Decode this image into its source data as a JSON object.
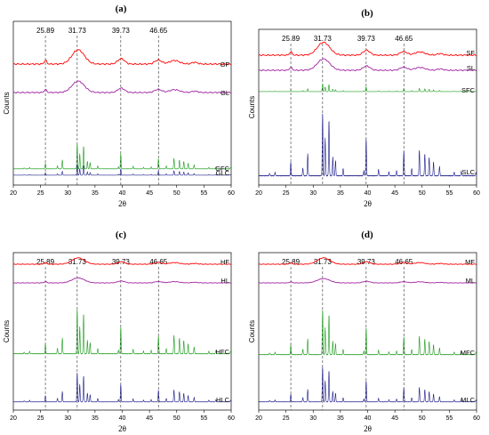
{
  "chart_data": [
    {
      "panel": "(a)",
      "type": "line",
      "xlabel": "2θ",
      "ylabel": "Counts",
      "xlim": [
        20,
        60
      ],
      "xticks": [
        20,
        25,
        30,
        35,
        40,
        45,
        50,
        55,
        60
      ],
      "reference_lines": [
        25.89,
        31.73,
        39.73,
        46.65
      ],
      "reference_labels": [
        "25.89",
        "31.73",
        "39.73",
        "46.65"
      ],
      "series": [
        {
          "name": "GF",
          "color": "#ff0000",
          "style": "amorphous",
          "amplitude": 1.0
        },
        {
          "name": "GL",
          "color": "#a020a0",
          "style": "amorphous",
          "amplitude": 0.8
        },
        {
          "name": "GFC",
          "color": "#1a9a1a",
          "style": "crystalline",
          "amplitude": 1.3
        },
        {
          "name": "GLC",
          "color": "#1a1a8a",
          "style": "crystalline",
          "amplitude": 0.55
        }
      ]
    },
    {
      "panel": "(b)",
      "type": "line",
      "xlabel": "2θ",
      "ylabel": "Counts",
      "xlim": [
        20,
        60
      ],
      "xticks": [
        20,
        25,
        30,
        35,
        40,
        45,
        50,
        55,
        60
      ],
      "reference_lines": [
        25.89,
        31.73,
        39.73,
        46.65
      ],
      "reference_labels": [
        "25.89",
        "31.73",
        "39.73",
        "46.65"
      ],
      "series": [
        {
          "name": "SF",
          "color": "#ff0000",
          "style": "amorphous",
          "amplitude": 0.9
        },
        {
          "name": "SL",
          "color": "#a020a0",
          "style": "amorphous",
          "amplitude": 0.8
        },
        {
          "name": "SFC",
          "color": "#1a9a1a",
          "style": "crystalline",
          "amplitude": 0.4
        },
        {
          "name": "SLC",
          "color": "#1a1a8a",
          "style": "crystalline",
          "amplitude": 3.2
        }
      ]
    },
    {
      "panel": "(c)",
      "type": "line",
      "xlabel": "2θ",
      "ylabel": "Counts",
      "xlim": [
        20,
        60
      ],
      "xticks": [
        20,
        25,
        30,
        35,
        40,
        45,
        50,
        55,
        60
      ],
      "reference_lines": [
        25.89,
        31.73,
        39.73,
        46.65
      ],
      "reference_labels": [
        "25.89",
        "31.73",
        "39.73",
        "46.65"
      ],
      "series": [
        {
          "name": "HF",
          "color": "#ff0000",
          "style": "amorphous",
          "amplitude": 0.45
        },
        {
          "name": "HL",
          "color": "#a020a0",
          "style": "amorphous",
          "amplitude": 0.35
        },
        {
          "name": "HFC",
          "color": "#1a9a1a",
          "style": "crystalline",
          "amplitude": 2.3
        },
        {
          "name": "HLC",
          "color": "#1a1a8a",
          "style": "crystalline",
          "amplitude": 1.5
        }
      ]
    },
    {
      "panel": "(d)",
      "type": "line",
      "xlabel": "2θ",
      "ylabel": "Counts",
      "xlim": [
        20,
        60
      ],
      "xticks": [
        20,
        25,
        30,
        35,
        40,
        45,
        50,
        55,
        60
      ],
      "reference_lines": [
        25.89,
        31.73,
        39.73,
        46.65
      ],
      "reference_labels": [
        "25.89",
        "31.73",
        "39.73",
        "46.65"
      ],
      "series": [
        {
          "name": "MF",
          "color": "#ff0000",
          "style": "amorphous",
          "amplitude": 0.45
        },
        {
          "name": "ML",
          "color": "#a020a0",
          "style": "amorphous",
          "amplitude": 0.3
        },
        {
          "name": "MFC",
          "color": "#1a9a1a",
          "style": "crystalline",
          "amplitude": 2.3
        },
        {
          "name": "MLC",
          "color": "#1a1a8a",
          "style": "crystalline",
          "amplitude": 1.8
        }
      ]
    }
  ]
}
